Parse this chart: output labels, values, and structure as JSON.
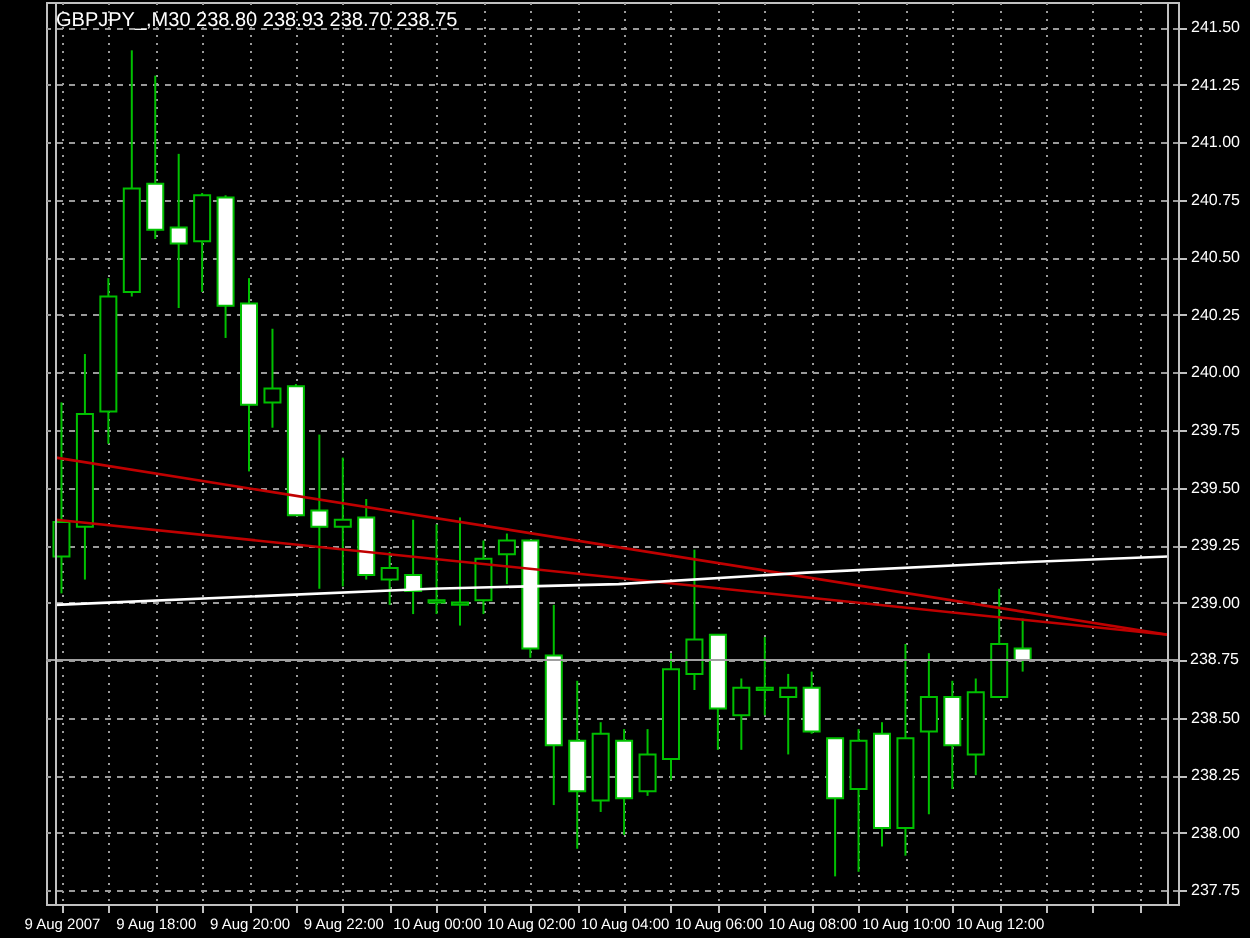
{
  "chart_data": {
    "type": "candlestick",
    "title": "GBPJPY_,M30 238.80 238.93 238.70 238.75",
    "color": "#00c000",
    "x": [
      "2007-08-09T16:00",
      "2007-08-09T16:30",
      "2007-08-09T17:00",
      "2007-08-09T17:30",
      "2007-08-09T18:00",
      "2007-08-09T18:30",
      "2007-08-09T19:00",
      "2007-08-09T19:30",
      "2007-08-09T20:00",
      "2007-08-09T20:30",
      "2007-08-09T21:00",
      "2007-08-09T21:30",
      "2007-08-09T22:00",
      "2007-08-09T22:30",
      "2007-08-09T23:00",
      "2007-08-09T23:30",
      "2007-08-10T00:00",
      "2007-08-10T00:30",
      "2007-08-10T01:00",
      "2007-08-10T01:30",
      "2007-08-10T02:00",
      "2007-08-10T02:30",
      "2007-08-10T03:00",
      "2007-08-10T03:30",
      "2007-08-10T04:00",
      "2007-08-10T04:30",
      "2007-08-10T05:00",
      "2007-08-10T05:30",
      "2007-08-10T06:00",
      "2007-08-10T06:30",
      "2007-08-10T07:00",
      "2007-08-10T07:30",
      "2007-08-10T08:00",
      "2007-08-10T08:30",
      "2007-08-10T09:00",
      "2007-08-10T09:30",
      "2007-08-10T10:00",
      "2007-08-10T10:30",
      "2007-08-10T11:00",
      "2007-08-10T11:30",
      "2007-08-10T12:00",
      "2007-08-10T12:30"
    ],
    "ohlc": [
      [
        239.2,
        239.87,
        239.04,
        239.35
      ],
      [
        239.33,
        240.08,
        239.1,
        239.82
      ],
      [
        239.83,
        240.41,
        239.69,
        240.33
      ],
      [
        240.35,
        241.4,
        240.33,
        240.8
      ],
      [
        240.82,
        241.29,
        240.58,
        240.62
      ],
      [
        240.63,
        240.95,
        240.28,
        240.56
      ],
      [
        240.57,
        240.78,
        240.35,
        240.77
      ],
      [
        240.76,
        240.77,
        240.15,
        240.29
      ],
      [
        240.3,
        240.41,
        239.57,
        239.86
      ],
      [
        239.87,
        240.19,
        239.76,
        239.93
      ],
      [
        239.94,
        239.95,
        239.38,
        239.38
      ],
      [
        239.4,
        239.73,
        239.06,
        239.33
      ],
      [
        239.33,
        239.63,
        239.07,
        239.36
      ],
      [
        239.37,
        239.45,
        239.1,
        239.12
      ],
      [
        239.1,
        239.22,
        238.99,
        239.15
      ],
      [
        239.12,
        239.36,
        238.95,
        239.05
      ],
      [
        239.01,
        239.34,
        238.95,
        239.0
      ],
      [
        239.0,
        239.37,
        238.9,
        238.99
      ],
      [
        239.01,
        239.27,
        238.95,
        239.19
      ],
      [
        239.21,
        239.3,
        239.08,
        239.27
      ],
      [
        239.27,
        239.27,
        238.76,
        238.8
      ],
      [
        238.77,
        238.99,
        238.12,
        238.38
      ],
      [
        238.4,
        238.66,
        237.93,
        238.18
      ],
      [
        238.14,
        238.48,
        238.09,
        238.43
      ],
      [
        238.4,
        238.45,
        237.99,
        238.15
      ],
      [
        238.18,
        238.45,
        238.16,
        238.34
      ],
      [
        238.32,
        238.78,
        238.23,
        238.71
      ],
      [
        238.69,
        239.23,
        238.62,
        238.84
      ],
      [
        238.86,
        238.86,
        238.36,
        238.54
      ],
      [
        238.51,
        238.67,
        238.36,
        238.63
      ],
      [
        238.63,
        238.85,
        238.51,
        238.62
      ],
      [
        238.59,
        238.69,
        238.34,
        238.63
      ],
      [
        238.63,
        238.7,
        238.43,
        238.44
      ],
      [
        238.41,
        238.41,
        237.81,
        238.15
      ],
      [
        238.19,
        238.45,
        237.83,
        238.4
      ],
      [
        238.43,
        238.48,
        237.94,
        238.02
      ],
      [
        238.02,
        238.82,
        237.9,
        238.41
      ],
      [
        238.44,
        238.78,
        238.08,
        238.59
      ],
      [
        238.59,
        238.66,
        238.19,
        238.38
      ],
      [
        238.34,
        238.67,
        238.25,
        238.61
      ],
      [
        238.59,
        239.06,
        238.59,
        238.82
      ],
      [
        238.8,
        238.93,
        238.7,
        238.75
      ]
    ],
    "colors": [
      "#000000",
      "#000000",
      "#000000",
      "#000000",
      "#ffffff",
      "#ffffff",
      "#000000",
      "#ffffff",
      "#ffffff",
      "#000000",
      "#ffffff",
      "#ffffff",
      "#000000",
      "#ffffff",
      "#000000",
      "#ffffff",
      "#000000",
      "#000000",
      "#000000",
      "#000000",
      "#ffffff",
      "#ffffff",
      "#ffffff",
      "#000000",
      "#ffffff",
      "#000000",
      "#000000",
      "#000000",
      "#ffffff",
      "#000000",
      "#000000",
      "#000000",
      "#ffffff",
      "#ffffff",
      "#000000",
      "#ffffff",
      "#000000",
      "#000000",
      "#ffffff",
      "#000000",
      "#000000",
      "#ffffff"
    ],
    "series": [
      {
        "type": "line",
        "color": "#c00000",
        "x": [
          "2007-08-09T15:53",
          "2007-08-10T15:36"
        ],
        "values": [
          239.63,
          238.86
        ]
      },
      {
        "type": "line",
        "color": "#c00000",
        "x": [
          "2007-08-09T15:53",
          "2007-08-10T15:36"
        ],
        "values": [
          239.36,
          238.86
        ]
      },
      {
        "type": "line",
        "color": "#ffffff",
        "x": [
          "2007-08-09T15:53",
          "2007-08-09T23:53",
          "2007-08-10T03:53",
          "2007-08-10T07:53",
          "2007-08-10T11:53",
          "2007-08-10T15:36"
        ],
        "values": [
          238.99,
          239.06,
          239.08,
          239.13,
          239.17,
          239.2
        ]
      }
    ],
    "ref_lines": [
      {
        "axis": "y",
        "value": 238.75,
        "label": "238.75",
        "color": "#a0a0a0"
      }
    ],
    "xlim": [
      "2007-08-09T15:53",
      "2007-08-10T15:36"
    ],
    "xticks": [
      {
        "value": "2007-08-09T16:00",
        "label": "9 Aug 2007"
      },
      {
        "value": "2007-08-09T17:00",
        "label": null
      },
      {
        "value": "2007-08-09T18:00",
        "label": "9 Aug 18:00"
      },
      {
        "value": "2007-08-09T19:00",
        "label": null
      },
      {
        "value": "2007-08-09T20:00",
        "label": "9 Aug 20:00"
      },
      {
        "value": "2007-08-09T21:00",
        "label": null
      },
      {
        "value": "2007-08-09T22:00",
        "label": "9 Aug 22:00"
      },
      {
        "value": "2007-08-09T23:00",
        "label": null
      },
      {
        "value": "2007-08-10T00:00",
        "label": "10 Aug 00:00"
      },
      {
        "value": "2007-08-10T01:00",
        "label": null
      },
      {
        "value": "2007-08-10T02:00",
        "label": "10 Aug 02:00"
      },
      {
        "value": "2007-08-10T03:00",
        "label": null
      },
      {
        "value": "2007-08-10T04:00",
        "label": "10 Aug 04:00"
      },
      {
        "value": "2007-08-10T05:00",
        "label": null
      },
      {
        "value": "2007-08-10T06:00",
        "label": "10 Aug 06:00"
      },
      {
        "value": "2007-08-10T07:00",
        "label": null
      },
      {
        "value": "2007-08-10T08:00",
        "label": "10 Aug 08:00"
      },
      {
        "value": "2007-08-10T09:00",
        "label": null
      },
      {
        "value": "2007-08-10T10:00",
        "label": "10 Aug 10:00"
      },
      {
        "value": "2007-08-10T11:00",
        "label": null
      },
      {
        "value": "2007-08-10T12:00",
        "label": "10 Aug 12:00"
      },
      {
        "value": "2007-08-10T13:00",
        "label": null
      },
      {
        "value": "2007-08-10T14:00",
        "label": null
      },
      {
        "value": "2007-08-10T15:00",
        "label": null
      }
    ],
    "ylim": [
      237.69,
      241.61
    ],
    "yticks": [
      {
        "value": 237.75,
        "label": "237.75"
      },
      {
        "value": 238.0,
        "label": "238.00"
      },
      {
        "value": 238.25,
        "label": "238.25"
      },
      {
        "value": 238.5,
        "label": "238.50"
      },
      {
        "value": 238.75,
        "label": null
      },
      {
        "value": 239.0,
        "label": "239.00"
      },
      {
        "value": 239.25,
        "label": "239.25"
      },
      {
        "value": 239.5,
        "label": "239.50"
      },
      {
        "value": 239.75,
        "label": "239.75"
      },
      {
        "value": 240.0,
        "label": "240.00"
      },
      {
        "value": 240.25,
        "label": "240.25"
      },
      {
        "value": 240.5,
        "label": "240.50"
      },
      {
        "value": 240.75,
        "label": "240.75"
      },
      {
        "value": 241.0,
        "label": "241.00"
      },
      {
        "value": 241.25,
        "label": "241.25"
      },
      {
        "value": 241.5,
        "label": "241.50"
      }
    ],
    "grid": true
  }
}
